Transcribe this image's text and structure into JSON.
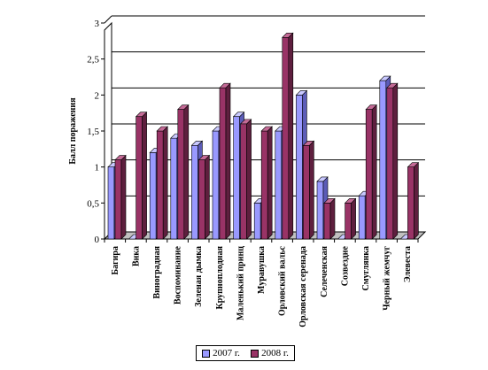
{
  "chart_data": {
    "type": "bar",
    "ylabel": "Балл поражения",
    "ylim": [
      0,
      3
    ],
    "yticks": [
      "0",
      "0,5",
      "1",
      "1,5",
      "2",
      "2,5",
      "3"
    ],
    "grid": true,
    "legend_position": "bottom",
    "categories": [
      "Багира",
      "Вика",
      "Виноградная",
      "Воспоминание",
      "Зеленая дымка",
      "Крупноплодная",
      "Маленький принц",
      "Муравушка",
      "Орловский вальс",
      "Орловская серенада",
      "Селеченская",
      "Созвездие",
      "Смуглянка",
      "Черный жемчуг",
      "Элевеста"
    ],
    "series": [
      {
        "name": "2007 г.",
        "values": [
          1.0,
          0,
          1.2,
          1.4,
          1.3,
          1.5,
          1.7,
          0.5,
          1.5,
          2.0,
          0.8,
          0,
          0.6,
          2.2,
          0
        ],
        "color": "#9999ff",
        "side": "#5c5cb8",
        "top": "#c8c8ff"
      },
      {
        "name": "2008 г.",
        "values": [
          1.1,
          1.7,
          1.5,
          1.8,
          1.1,
          2.1,
          1.6,
          1.5,
          2.8,
          1.3,
          0.5,
          0.5,
          1.8,
          2.1,
          1.0
        ],
        "color": "#993366",
        "side": "#5e1f3e",
        "top": "#c46a96"
      }
    ]
  }
}
